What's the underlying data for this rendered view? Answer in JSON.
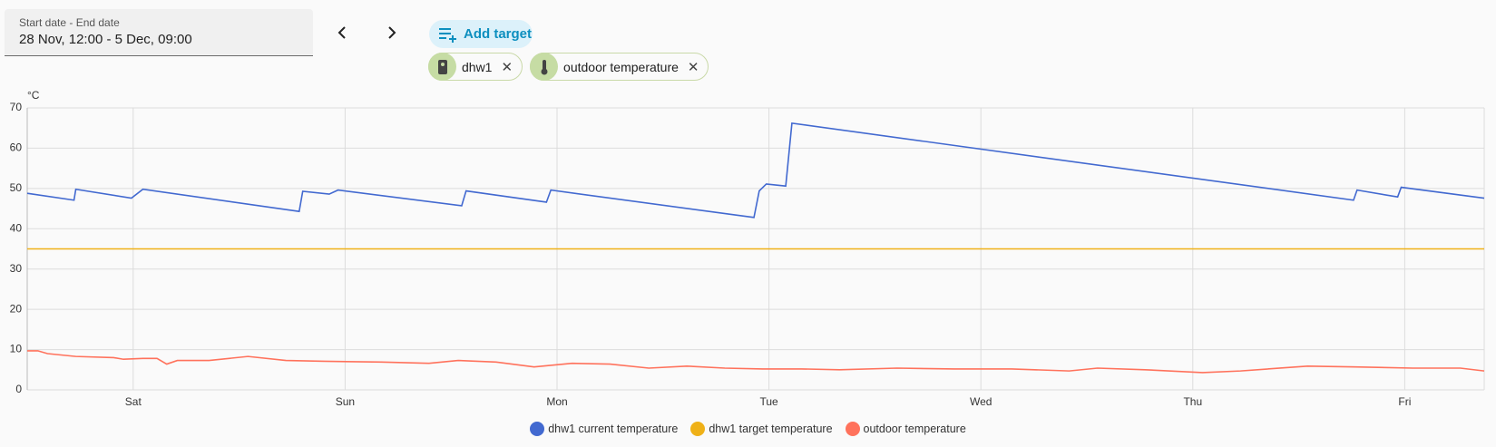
{
  "date_picker": {
    "label": "Start date - End date",
    "value": "28 Nov, 12:00 - 5 Dec, 09:00"
  },
  "add_target": "Add target",
  "targets": [
    "dhw1",
    "outdoor temperature"
  ],
  "chart_data": {
    "type": "line",
    "y_label": "°C",
    "xlim": [
      0,
      165
    ],
    "xticks": [
      {
        "value": 12,
        "label": "Sat"
      },
      {
        "value": 36,
        "label": "Sun"
      },
      {
        "value": 60,
        "label": "Mon"
      },
      {
        "value": 84,
        "label": "Tue"
      },
      {
        "value": 108,
        "label": "Wed"
      },
      {
        "value": 132,
        "label": "Thu"
      },
      {
        "value": 156,
        "label": "Fri"
      }
    ],
    "ylim": [
      0,
      70
    ],
    "yticks": [
      0,
      10,
      20,
      30,
      40,
      50,
      60,
      70
    ],
    "grid": true,
    "series": [
      {
        "name": "dhw1 current temperature",
        "color": "#4269d0",
        "x": [
          0,
          5.3,
          5.5,
          11.8,
          13.1,
          30.8,
          31.2,
          34.2,
          35.2,
          49.2,
          49.7,
          58.8,
          59.3,
          82.3,
          82.9,
          83.7,
          85.9,
          86.6,
          150.2,
          150.6,
          155.2,
          155.6,
          165
        ],
        "values": [
          48.8,
          47.1,
          49.8,
          47.6,
          49.8,
          44.3,
          49.3,
          48.6,
          49.6,
          45.7,
          49.4,
          46.6,
          49.6,
          42.8,
          49.4,
          51.1,
          50.6,
          66.2,
          47.1,
          49.6,
          47.9,
          50.3,
          47.6
        ]
      },
      {
        "name": "dhw1 target temperature",
        "color": "#efb118",
        "x": [
          0,
          165
        ],
        "values": [
          35,
          35
        ]
      },
      {
        "name": "outdoor temperature",
        "color": "#ff725c",
        "x": [
          0,
          1.2,
          2.3,
          5.5,
          9.8,
          10.9,
          13.1,
          14.7,
          15.8,
          17,
          20.6,
          25,
          29.3,
          33.6,
          40.1,
          45.5,
          48.8,
          53.1,
          57.4,
          61.7,
          66,
          70.4,
          74.7,
          79,
          83.3,
          87.7,
          92,
          98.5,
          105,
          111.5,
          118,
          121.2,
          126.6,
          133.1,
          137.4,
          145,
          150.4,
          156.9,
          162.3,
          165
        ],
        "values": [
          9.7,
          9.7,
          9.0,
          8.3,
          8.0,
          7.6,
          7.8,
          7.8,
          6.4,
          7.3,
          7.3,
          8.3,
          7.3,
          7.1,
          6.9,
          6.6,
          7.3,
          6.9,
          5.7,
          6.6,
          6.4,
          5.4,
          5.9,
          5.4,
          5.2,
          5.2,
          5.0,
          5.4,
          5.2,
          5.2,
          4.7,
          5.4,
          5.0,
          4.3,
          4.7,
          5.9,
          5.7,
          5.4,
          5.4,
          4.7
        ]
      }
    ]
  }
}
